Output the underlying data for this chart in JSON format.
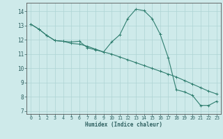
{
  "title": "",
  "xlabel": "Humidex (Indice chaleur)",
  "background_color": "#ceeaea",
  "grid_color": "#aed4d4",
  "line_color": "#2e7d6e",
  "xlim": [
    -0.5,
    23.5
  ],
  "ylim": [
    6.8,
    14.6
  ],
  "yticks": [
    7,
    8,
    9,
    10,
    11,
    12,
    13,
    14
  ],
  "xticks": [
    0,
    1,
    2,
    3,
    4,
    5,
    6,
    7,
    8,
    9,
    10,
    11,
    12,
    13,
    14,
    15,
    16,
    17,
    18,
    19,
    20,
    21,
    22,
    23
  ],
  "series1_x": [
    0,
    1,
    2,
    3,
    4,
    5,
    6,
    7,
    8,
    9,
    10,
    11,
    12,
    13,
    14,
    15,
    16,
    17,
    18,
    19,
    20,
    21,
    22,
    23
  ],
  "series1_y": [
    13.1,
    12.75,
    12.3,
    11.95,
    11.9,
    11.75,
    11.7,
    11.55,
    11.35,
    11.15,
    11.0,
    10.8,
    10.6,
    10.4,
    10.2,
    10.0,
    9.8,
    9.6,
    9.4,
    9.15,
    8.9,
    8.65,
    8.4,
    8.2
  ],
  "series2_x": [
    0,
    1,
    2,
    3,
    4,
    5,
    6,
    7,
    8,
    9,
    10,
    11,
    12,
    13,
    14,
    15,
    16,
    17,
    18,
    19,
    20,
    21,
    22,
    23
  ],
  "series2_y": [
    13.1,
    12.75,
    12.3,
    11.95,
    11.9,
    11.85,
    11.9,
    11.45,
    11.3,
    11.15,
    11.85,
    12.35,
    13.5,
    14.15,
    14.05,
    13.5,
    12.4,
    10.75,
    8.5,
    8.35,
    8.1,
    7.4,
    7.4,
    7.7
  ]
}
